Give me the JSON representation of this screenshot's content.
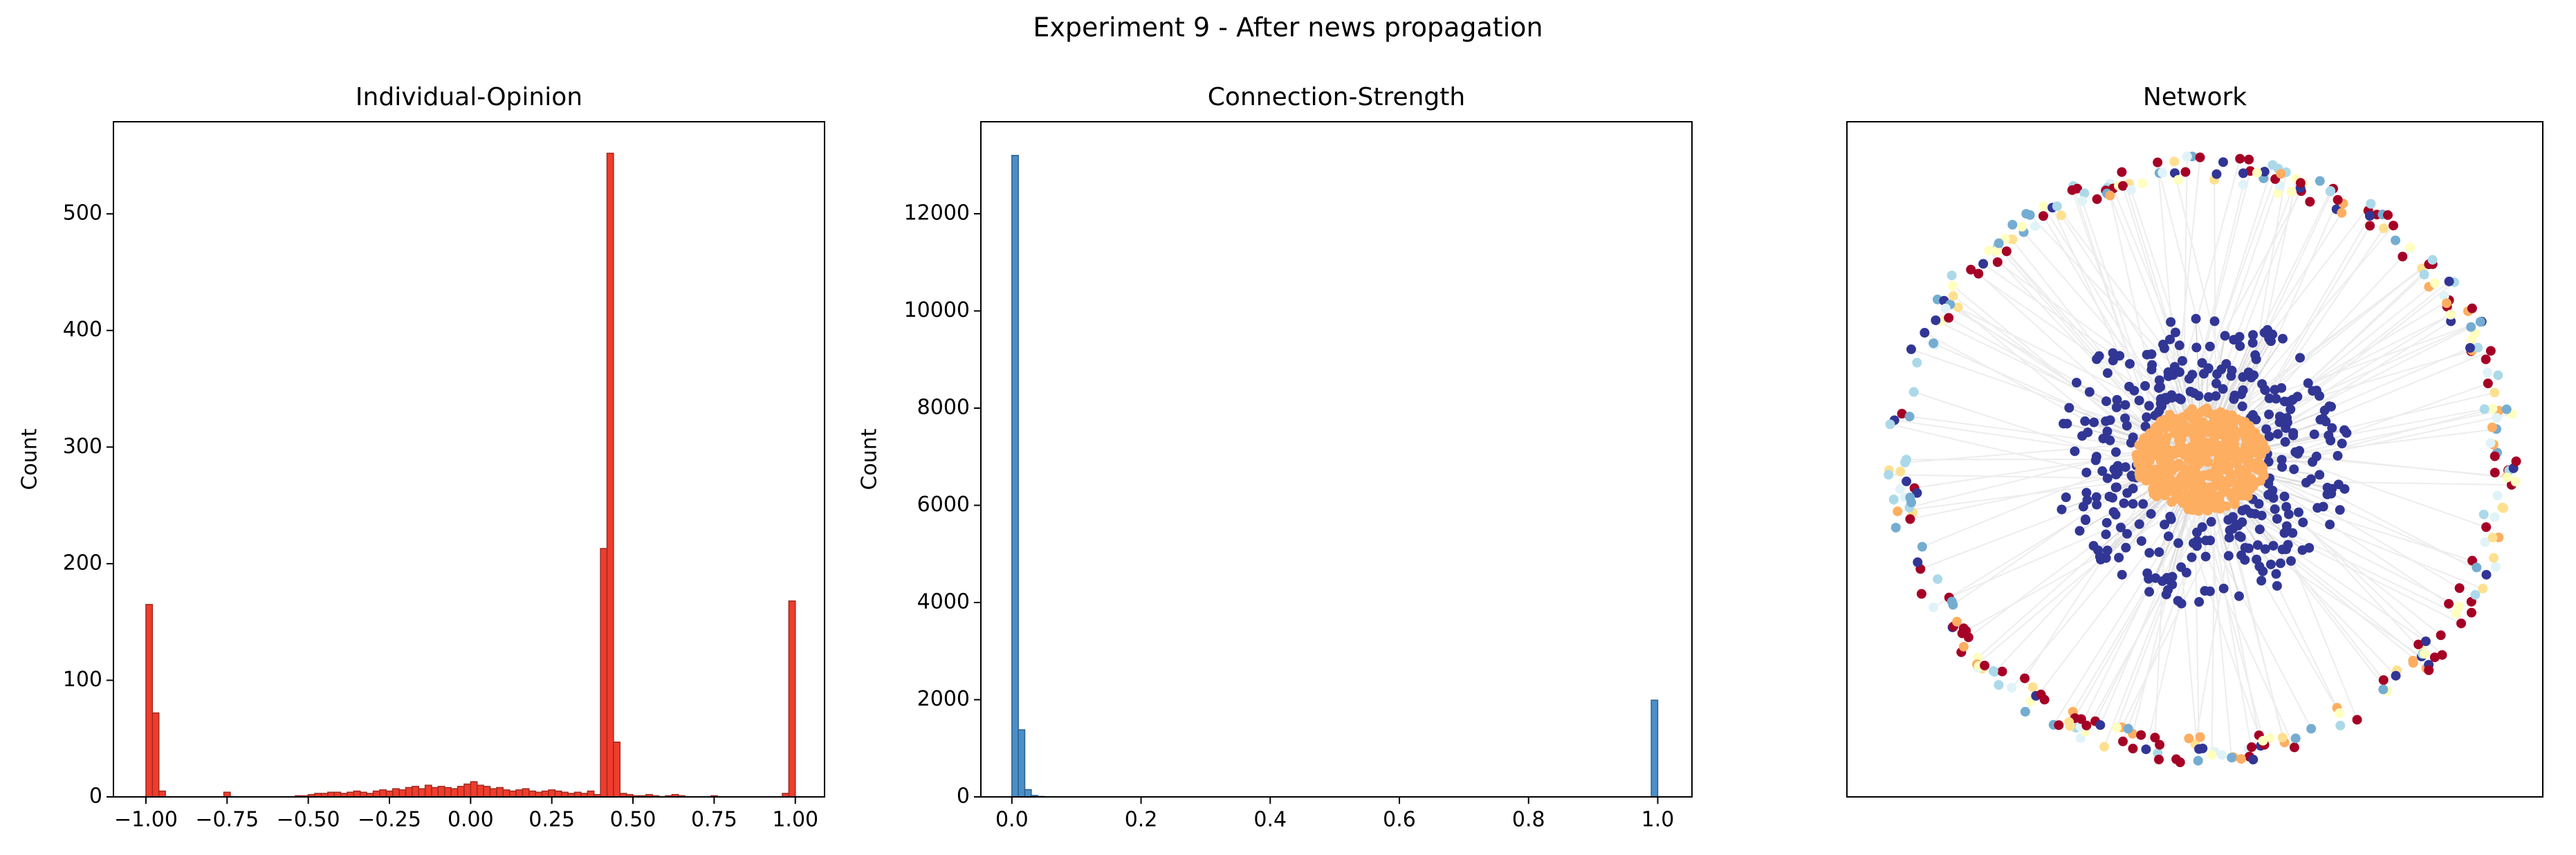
{
  "title": "Experiment 9 - After news propagation",
  "chart_data": [
    {
      "type": "histogram",
      "title": "Individual-Opinion",
      "ylabel": "Count",
      "color": "#f03c2c",
      "edgecolor": "#9e2a20",
      "bins": [
        -1,
        -0.98,
        -0.96,
        -0.94,
        -0.92,
        -0.9,
        -0.88,
        -0.86,
        -0.84,
        -0.82,
        -0.8,
        -0.78,
        -0.76,
        -0.74,
        -0.72,
        -0.7,
        -0.68,
        -0.66,
        -0.64,
        -0.62,
        -0.6,
        -0.58,
        -0.56,
        -0.54,
        -0.52,
        -0.5,
        -0.48,
        -0.46,
        -0.44,
        -0.42,
        -0.4,
        -0.38,
        -0.36,
        -0.34,
        -0.32,
        -0.3,
        -0.28,
        -0.26,
        -0.24,
        -0.22,
        -0.2,
        -0.18,
        -0.16,
        -0.14,
        -0.12,
        -0.1,
        -0.08,
        -0.06,
        -0.04,
        -0.02,
        0,
        0.02,
        0.04,
        0.06,
        0.08,
        0.1,
        0.12,
        0.14,
        0.16,
        0.18,
        0.2,
        0.22,
        0.24,
        0.26,
        0.28,
        0.3,
        0.32,
        0.34,
        0.36,
        0.38,
        0.4,
        0.42,
        0.44,
        0.46,
        0.48,
        0.5,
        0.52,
        0.54,
        0.56,
        0.58,
        0.6,
        0.62,
        0.64,
        0.66,
        0.68,
        0.7,
        0.72,
        0.74,
        0.76,
        0.78,
        0.8,
        0.82,
        0.84,
        0.86,
        0.88,
        0.9,
        0.92,
        0.94,
        0.96,
        0.98,
        1
      ],
      "values": [
        165,
        72,
        5,
        0,
        0,
        0,
        0,
        0,
        0,
        0,
        0,
        0,
        4,
        0,
        0,
        0,
        0,
        0,
        0,
        0,
        0,
        0,
        0,
        1,
        1,
        2,
        3,
        3,
        4,
        4,
        3,
        4,
        5,
        4,
        3,
        5,
        6,
        5,
        7,
        6,
        8,
        9,
        7,
        10,
        8,
        9,
        8,
        7,
        9,
        11,
        13,
        10,
        9,
        7,
        8,
        6,
        5,
        6,
        7,
        5,
        4,
        5,
        6,
        5,
        4,
        3,
        4,
        3,
        5,
        2,
        213,
        552,
        47,
        3,
        2,
        1,
        1,
        2,
        1,
        0,
        1,
        2,
        1,
        0,
        0,
        0,
        0,
        1,
        0,
        0,
        0,
        0,
        0,
        0,
        0,
        0,
        0,
        0,
        3,
        168
      ],
      "xlim": [
        -1.1,
        1.09
      ],
      "ylim": [
        0,
        579
      ],
      "xticks": [
        {
          "value": -1,
          "label": "−1.00"
        },
        {
          "value": -0.75,
          "label": "−0.75"
        },
        {
          "value": -0.5,
          "label": "−0.50"
        },
        {
          "value": -0.25,
          "label": "−0.25"
        },
        {
          "value": 0,
          "label": "0.00"
        },
        {
          "value": 0.25,
          "label": "0.25"
        },
        {
          "value": 0.5,
          "label": "0.50"
        },
        {
          "value": 0.75,
          "label": "0.75"
        },
        {
          "value": 1,
          "label": "1.00"
        }
      ],
      "yticks": [
        0,
        100,
        200,
        300,
        400,
        500
      ]
    },
    {
      "type": "histogram",
      "title": "Connection-Strength",
      "ylabel": "Count",
      "color": "#4a8fc8",
      "edgecolor": "#2c5f8a",
      "bins": [
        0,
        0.01,
        0.02,
        0.03,
        0.04,
        0.05,
        0.06,
        0.07,
        0.08,
        0.09,
        0.1,
        0.11,
        0.12,
        0.13,
        0.14,
        0.15,
        0.16,
        0.17,
        0.18,
        0.19,
        0.2,
        0.21,
        0.22,
        0.23,
        0.24,
        0.25,
        0.26,
        0.27,
        0.28,
        0.29,
        0.3,
        0.31,
        0.32,
        0.33,
        0.34,
        0.35,
        0.36,
        0.37,
        0.38,
        0.39,
        0.4,
        0.41,
        0.42,
        0.43,
        0.44,
        0.45,
        0.46,
        0.47,
        0.48,
        0.49,
        0.5,
        0.51,
        0.52,
        0.53,
        0.54,
        0.55,
        0.56,
        0.57,
        0.58,
        0.59,
        0.6,
        0.61,
        0.62,
        0.63,
        0.64,
        0.65,
        0.66,
        0.67,
        0.68,
        0.69,
        0.7,
        0.71,
        0.72,
        0.73,
        0.74,
        0.75,
        0.76,
        0.77,
        0.78,
        0.79,
        0.8,
        0.81,
        0.82,
        0.83,
        0.84,
        0.85,
        0.86,
        0.87,
        0.88,
        0.89,
        0.9,
        0.91,
        0.92,
        0.93,
        0.94,
        0.95,
        0.96,
        0.97,
        0.98,
        0.99,
        1
      ],
      "values": [
        13200,
        1380,
        150,
        30,
        10,
        5,
        0,
        0,
        0,
        0,
        0,
        0,
        0,
        0,
        0,
        0,
        0,
        0,
        0,
        0,
        0,
        0,
        0,
        0,
        0,
        0,
        0,
        0,
        0,
        0,
        0,
        0,
        0,
        0,
        0,
        0,
        0,
        0,
        0,
        0,
        0,
        0,
        0,
        0,
        0,
        0,
        0,
        0,
        0,
        0,
        0,
        0,
        0,
        0,
        0,
        0,
        0,
        0,
        0,
        0,
        0,
        0,
        0,
        0,
        0,
        0,
        0,
        0,
        0,
        0,
        0,
        0,
        0,
        0,
        0,
        0,
        0,
        0,
        0,
        0,
        0,
        0,
        0,
        0,
        0,
        0,
        0,
        0,
        0,
        0,
        0,
        0,
        0,
        0,
        0,
        0,
        0,
        0,
        0,
        1990
      ],
      "xlim": [
        -0.048,
        1.053
      ],
      "ylim": [
        0,
        13893
      ],
      "xticks": [
        {
          "value": 0,
          "label": "0.0"
        },
        {
          "value": 0.2,
          "label": "0.2"
        },
        {
          "value": 0.4,
          "label": "0.4"
        },
        {
          "value": 0.6,
          "label": "0.6"
        },
        {
          "value": 0.8,
          "label": "0.8"
        },
        {
          "value": 1,
          "label": "1.0"
        }
      ],
      "yticks": [
        0,
        2000,
        4000,
        6000,
        8000,
        10000,
        12000
      ]
    },
    {
      "type": "network",
      "title": "Network"
    }
  ]
}
